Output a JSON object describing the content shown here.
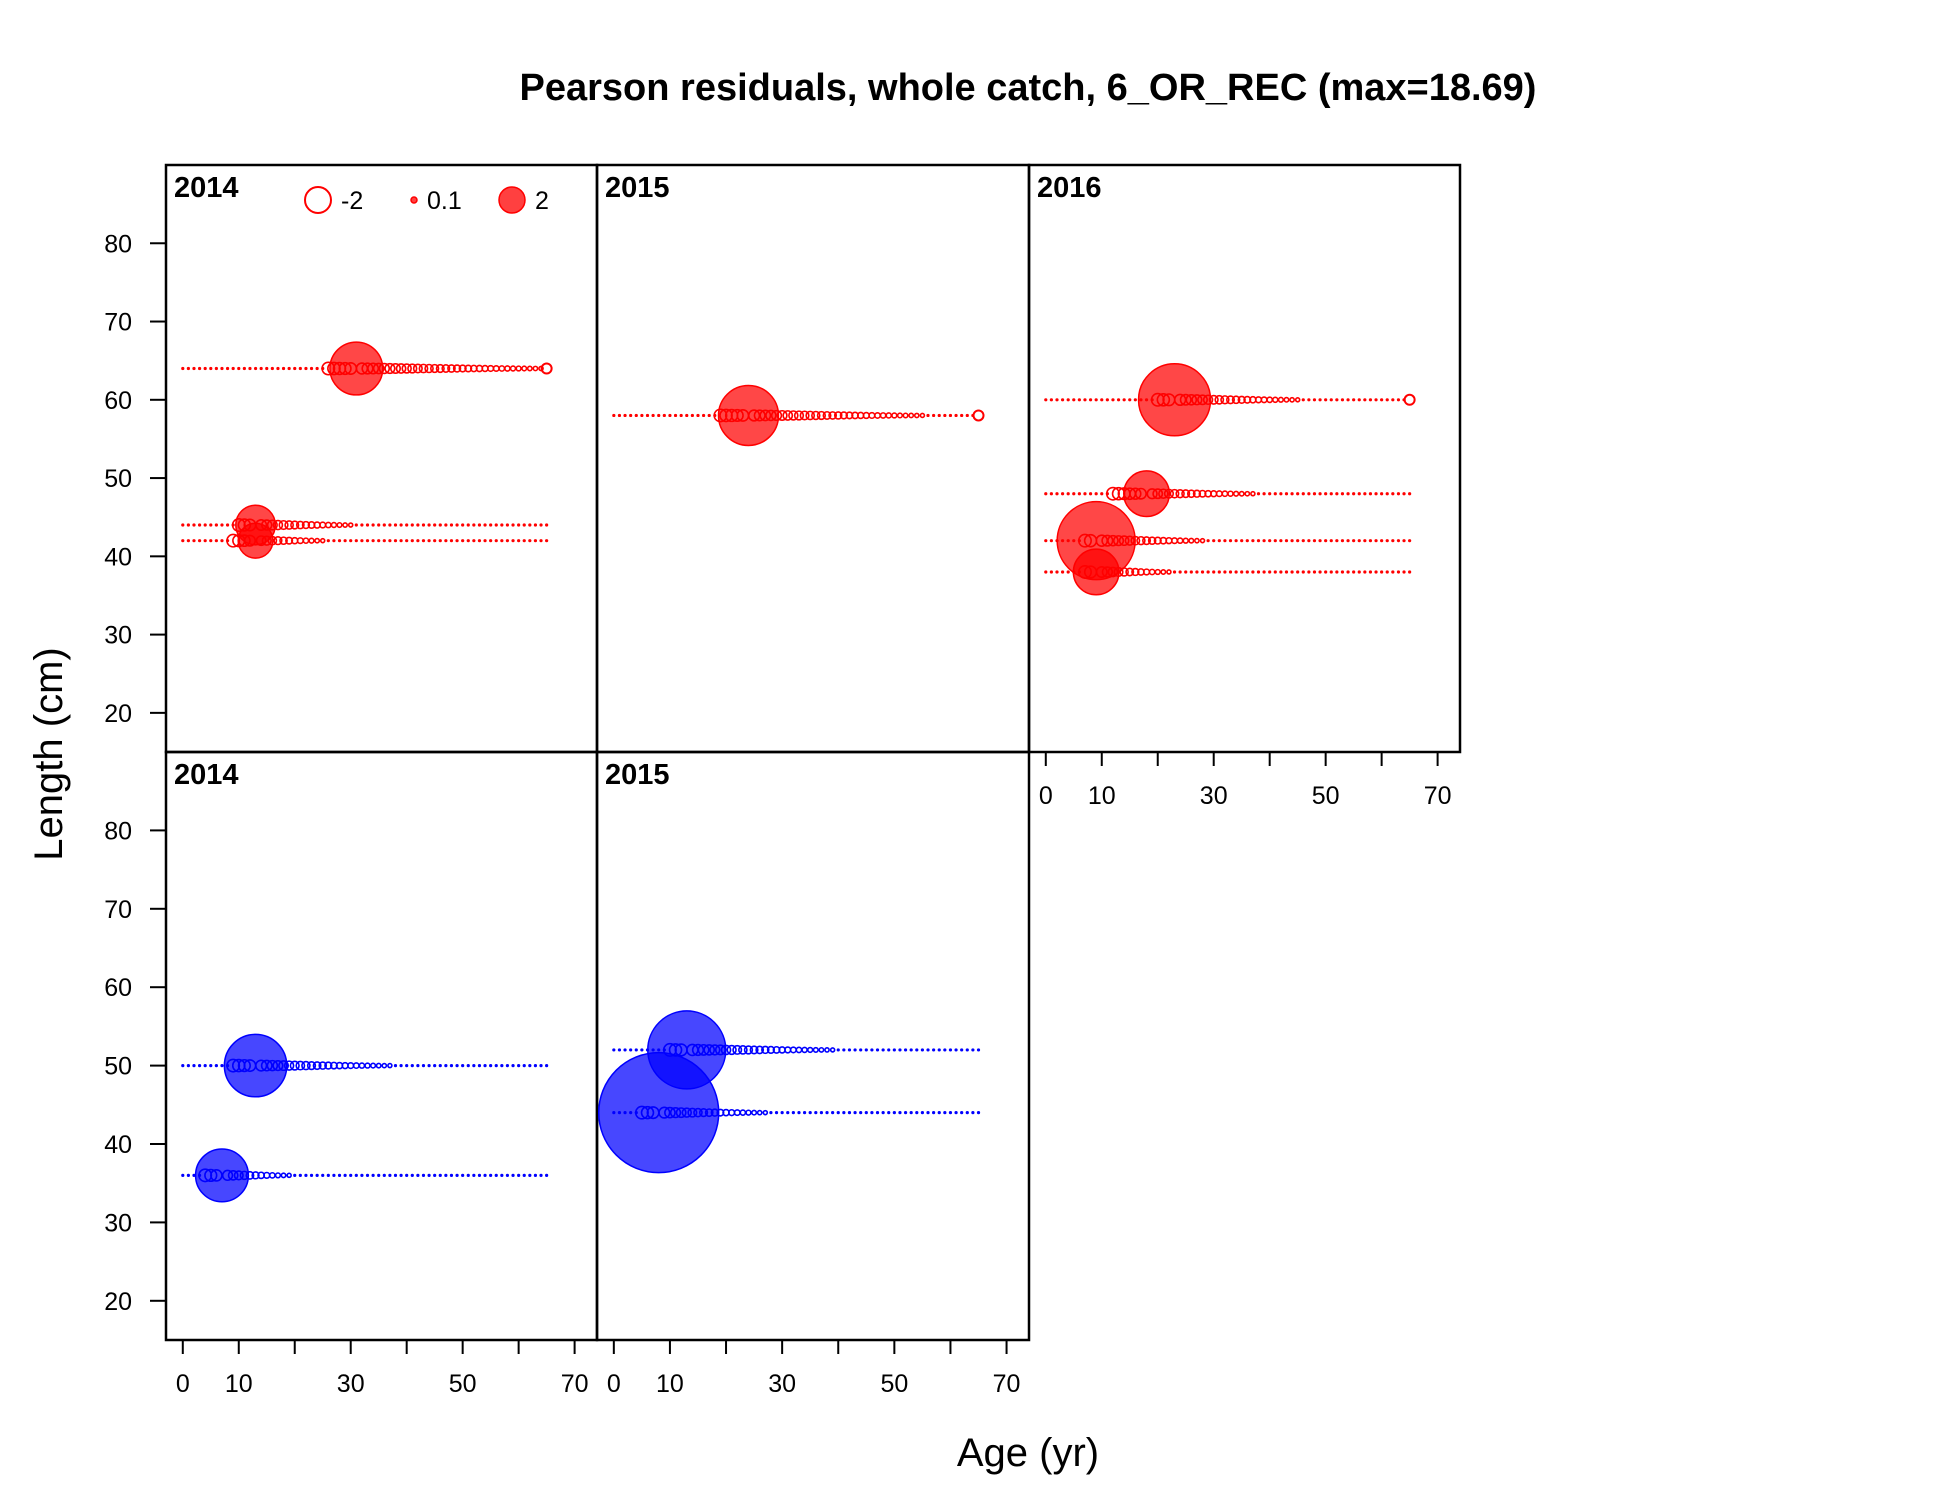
{
  "chart_data": {
    "type": "scatter",
    "subtype": "bubble-residuals",
    "title": "Pearson residuals, whole catch, 6_OR_REC (max=18.69)",
    "xlabel": "Age (yr)",
    "ylabel": "Length (cm)",
    "xlim": [
      -3,
      74
    ],
    "ylim": [
      15,
      90
    ],
    "xticks": [
      0,
      10,
      20,
      30,
      40,
      50,
      60,
      70
    ],
    "xtick_labels": [
      "0",
      "10",
      "",
      "30",
      "",
      "50",
      "",
      "70"
    ],
    "yticks": [
      20,
      30,
      40,
      50,
      60,
      70,
      80
    ],
    "ytick_labels": [
      "20",
      "30",
      "40",
      "50",
      "60",
      "70",
      "80"
    ],
    "colors": {
      "positive": "#ff0000",
      "negative": "#0000ff",
      "frame": "#000000"
    },
    "legend": {
      "placement": "top",
      "entries": [
        {
          "label": "-2",
          "value": -2,
          "style": "open"
        },
        {
          "label": "0.1",
          "value": 0.1,
          "style": "filled"
        },
        {
          "label": "2",
          "value": 2,
          "style": "filled"
        }
      ]
    },
    "panels": [
      {
        "label": "2014",
        "color": "#ff0000",
        "grid_row": 0,
        "grid_col": 0,
        "rows": [
          {
            "length": 64,
            "age_min": 0,
            "age_max": 65,
            "big_age": 31,
            "big_size": 2.2,
            "open_from": 26,
            "open_to": 65,
            "end_open": 65
          },
          {
            "length": 44,
            "age_min": 0,
            "age_max": 65,
            "big_age": 13,
            "big_size": 1.65,
            "open_from": 10,
            "open_to": 30
          },
          {
            "length": 42,
            "age_min": 0,
            "age_max": 65,
            "big_age": 13,
            "big_size": 1.45,
            "open_from": 9,
            "open_to": 25
          }
        ]
      },
      {
        "label": "2015",
        "color": "#ff0000",
        "grid_row": 0,
        "grid_col": 1,
        "rows": [
          {
            "length": 58,
            "age_min": 0,
            "age_max": 65,
            "big_age": 24,
            "big_size": 2.5,
            "open_from": 19,
            "open_to": 55,
            "end_open": 65
          }
        ]
      },
      {
        "label": "2016",
        "color": "#ff0000",
        "grid_row": 0,
        "grid_col": 2,
        "rows": [
          {
            "length": 60,
            "age_min": 0,
            "age_max": 65,
            "big_age": 23,
            "big_size": 3.0,
            "open_from": 20,
            "open_to": 45,
            "end_open": 65
          },
          {
            "length": 48,
            "age_min": 0,
            "age_max": 65,
            "big_age": 18,
            "big_size": 1.9,
            "open_from": 12,
            "open_to": 37
          },
          {
            "length": 42,
            "age_min": 0,
            "age_max": 65,
            "big_age": 9,
            "big_size": 3.25,
            "open_from": 7,
            "open_to": 28
          },
          {
            "length": 38,
            "age_min": 0,
            "age_max": 65,
            "big_age": 9,
            "big_size": 1.9,
            "open_from": 7,
            "open_to": 22
          }
        ]
      },
      {
        "label": "2014",
        "color": "#0000ff",
        "grid_row": 1,
        "grid_col": 0,
        "rows": [
          {
            "length": 50,
            "age_min": 0,
            "age_max": 65,
            "big_age": 13,
            "big_size": 2.6,
            "open_from": 9,
            "open_to": 37
          },
          {
            "length": 36,
            "age_min": 0,
            "age_max": 65,
            "big_age": 7,
            "big_size": 2.2,
            "open_from": 4,
            "open_to": 19
          }
        ]
      },
      {
        "label": "2015",
        "color": "#0000ff",
        "grid_row": 1,
        "grid_col": 1,
        "rows": [
          {
            "length": 52,
            "age_min": 0,
            "age_max": 65,
            "big_age": 13,
            "big_size": 3.25,
            "open_from": 10,
            "open_to": 39
          },
          {
            "length": 44,
            "age_min": 0,
            "age_max": 65,
            "big_age": 8,
            "big_size": 5.0,
            "open_from": 5,
            "open_to": 27
          }
        ]
      }
    ]
  }
}
